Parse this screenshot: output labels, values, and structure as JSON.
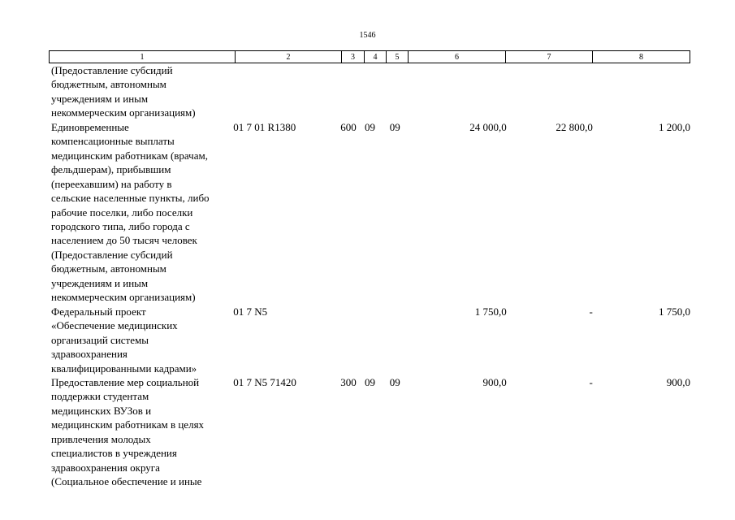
{
  "page_number": "1546",
  "columns": [
    "1",
    "2",
    "3",
    "4",
    "5",
    "6",
    "7",
    "8"
  ],
  "rows": [
    {
      "lines": [
        "(Предоставление субсидий",
        "бюджетным, автономным",
        "учреждениям и иным",
        "некоммерческим организациям)"
      ],
      "code": "",
      "c3": "",
      "c4": "",
      "c5": "",
      "c6": "",
      "c7": "",
      "c8": ""
    },
    {
      "lines": [
        "Единовременные",
        "компенсационные выплаты",
        "медицинским работникам (врачам,",
        "фельдшерам), прибывшим",
        "(переехавшим) на работу в",
        "сельские населенные пункты, либо",
        "рабочие поселки, либо поселки",
        "городского типа, либо города с",
        "населением до 50 тысяч человек",
        "(Предоставление субсидий",
        "бюджетным, автономным",
        "учреждениям и иным",
        "некоммерческим организациям)"
      ],
      "code": "01 7 01 R1380",
      "c3": "600",
      "c4": "09",
      "c5": "09",
      "c6": "24 000,0",
      "c7": "22 800,0",
      "c8": "1 200,0"
    },
    {
      "lines": [
        "Федеральный проект",
        "«Обеспечение медицинских",
        "организаций системы",
        "здравоохранения",
        "квалифицированными кадрами»"
      ],
      "code": "01 7 N5",
      "c3": "",
      "c4": "",
      "c5": "",
      "c6": "1 750,0",
      "c7": "-",
      "c8": "1 750,0"
    },
    {
      "lines": [
        "Предоставление мер социальной",
        "поддержки студентам",
        "медицинских ВУЗов и",
        "медицинским работникам в целях",
        "привлечения молодых",
        "специалистов в учреждения",
        "здравоохранения округа",
        "(Социальное обеспечение и иные"
      ],
      "code": "01 7 N5 71420",
      "c3": "300",
      "c4": "09",
      "c5": "09",
      "c6": "900,0",
      "c7": "-",
      "c8": "900,0"
    }
  ]
}
